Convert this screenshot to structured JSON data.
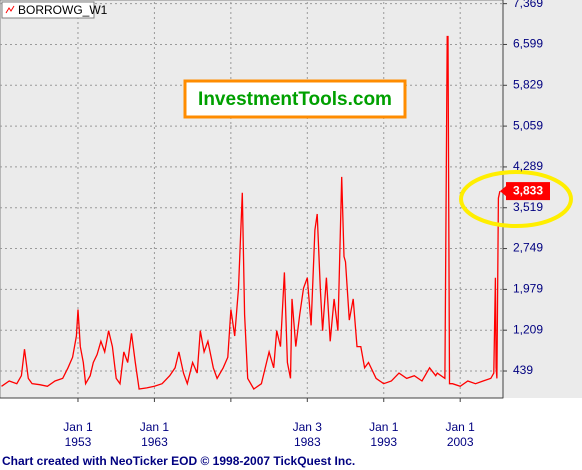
{
  "chart_data": {
    "type": "line",
    "title": "BORROWG_W1",
    "watermark": "InvestmentTools.com",
    "footer": "Chart created with NeoTicker EOD © 1998-2007 TickQuest Inc.",
    "x": [
      1943,
      1944,
      1945,
      1945.6,
      1946,
      1946.5,
      1947,
      1948,
      1949,
      1950,
      1951,
      1951.7,
      1952.3,
      1952.8,
      1953,
      1953.3,
      1953.7,
      1954,
      1954.6,
      1955,
      1955.5,
      1956,
      1956.5,
      1957,
      1957.5,
      1958,
      1958.5,
      1959,
      1959.5,
      1960,
      1960.5,
      1961,
      1962,
      1963,
      1964,
      1965,
      1965.7,
      1966.2,
      1966.8,
      1967.3,
      1968,
      1968.6,
      1969,
      1969.5,
      1970,
      1970.7,
      1971.2,
      1972,
      1972.6,
      1973,
      1973.5,
      1974,
      1974.5,
      1974.8,
      1975.2,
      1976,
      1977,
      1978,
      1978.6,
      1979,
      1979.5,
      1980,
      1980.4,
      1980.8,
      1981,
      1981.5,
      1982,
      1982.5,
      1983,
      1983.5,
      1984,
      1984.3,
      1984.7,
      1985,
      1985.5,
      1986,
      1986.5,
      1987,
      1987.5,
      1987.8,
      1988,
      1988.5,
      1989,
      1989.5,
      1990,
      1990.5,
      1991,
      1992,
      1993,
      1994,
      1995,
      1996,
      1997,
      1998,
      1999,
      1999.8,
      2000,
      2001,
      2001.3,
      2001.4,
      2001.6,
      2002,
      2003,
      2004,
      2005,
      2006,
      2007,
      2007.4,
      2007.6,
      2007.7,
      2007.8,
      2008,
      2008.2
    ],
    "series": [
      {
        "name": "BORROWG_W1",
        "color": "#ff0000",
        "values": [
          150,
          250,
          200,
          350,
          850,
          300,
          200,
          180,
          150,
          250,
          300,
          500,
          700,
          1100,
          1600,
          900,
          600,
          200,
          350,
          600,
          750,
          1000,
          800,
          1200,
          900,
          300,
          200,
          800,
          600,
          1150,
          600,
          100,
          120,
          150,
          200,
          350,
          500,
          800,
          400,
          200,
          600,
          400,
          1200,
          800,
          1000,
          500,
          300,
          500,
          700,
          1600,
          1100,
          2000,
          3800,
          1500,
          300,
          100,
          200,
          800,
          500,
          1200,
          900,
          2300,
          600,
          300,
          1800,
          900,
          1500,
          2000,
          2200,
          1300,
          3100,
          3400,
          2000,
          1200,
          2200,
          1000,
          1800,
          1200,
          4100,
          2600,
          2500,
          1400,
          1800,
          900,
          900,
          500,
          600,
          300,
          200,
          250,
          400,
          300,
          350,
          250,
          500,
          350,
          400,
          300,
          6750,
          6750,
          200,
          200,
          150,
          250,
          200,
          250,
          300,
          400,
          2200,
          500,
          300,
          3700,
          3833
        ],
        "last_label": "3,833"
      }
    ],
    "xlim": [
      1942.8,
      2008.6
    ],
    "xticks": [
      {
        "value": 1953,
        "label": "Jan 1",
        "year": "1953"
      },
      {
        "value": 1963,
        "label": "Jan 1",
        "year": "1963"
      },
      {
        "value": 1973,
        "label": null,
        "year": null
      },
      {
        "value": 1983,
        "label": "Jan 3",
        "year": "1983"
      },
      {
        "value": 1993,
        "label": "Jan 1",
        "year": "1993"
      },
      {
        "value": 2003,
        "label": "Jan 1",
        "year": "2003"
      }
    ],
    "ylim": [
      -70,
      7400
    ],
    "yticks": [
      439,
      {
        "value": 1209,
        "label": "1,209"
      },
      {
        "value": 1979,
        "label": "1,979"
      },
      {
        "value": 2749,
        "label": "2,749"
      },
      {
        "value": 3519,
        "label": "3,519"
      },
      {
        "value": 4289,
        "label": "4,289"
      },
      {
        "value": 5059,
        "label": "5,059"
      },
      {
        "value": 5829,
        "label": "5,829"
      },
      {
        "value": 6599,
        "label": "6,599"
      },
      {
        "value": 7369,
        "label": "7,369"
      }
    ],
    "grid": true
  }
}
